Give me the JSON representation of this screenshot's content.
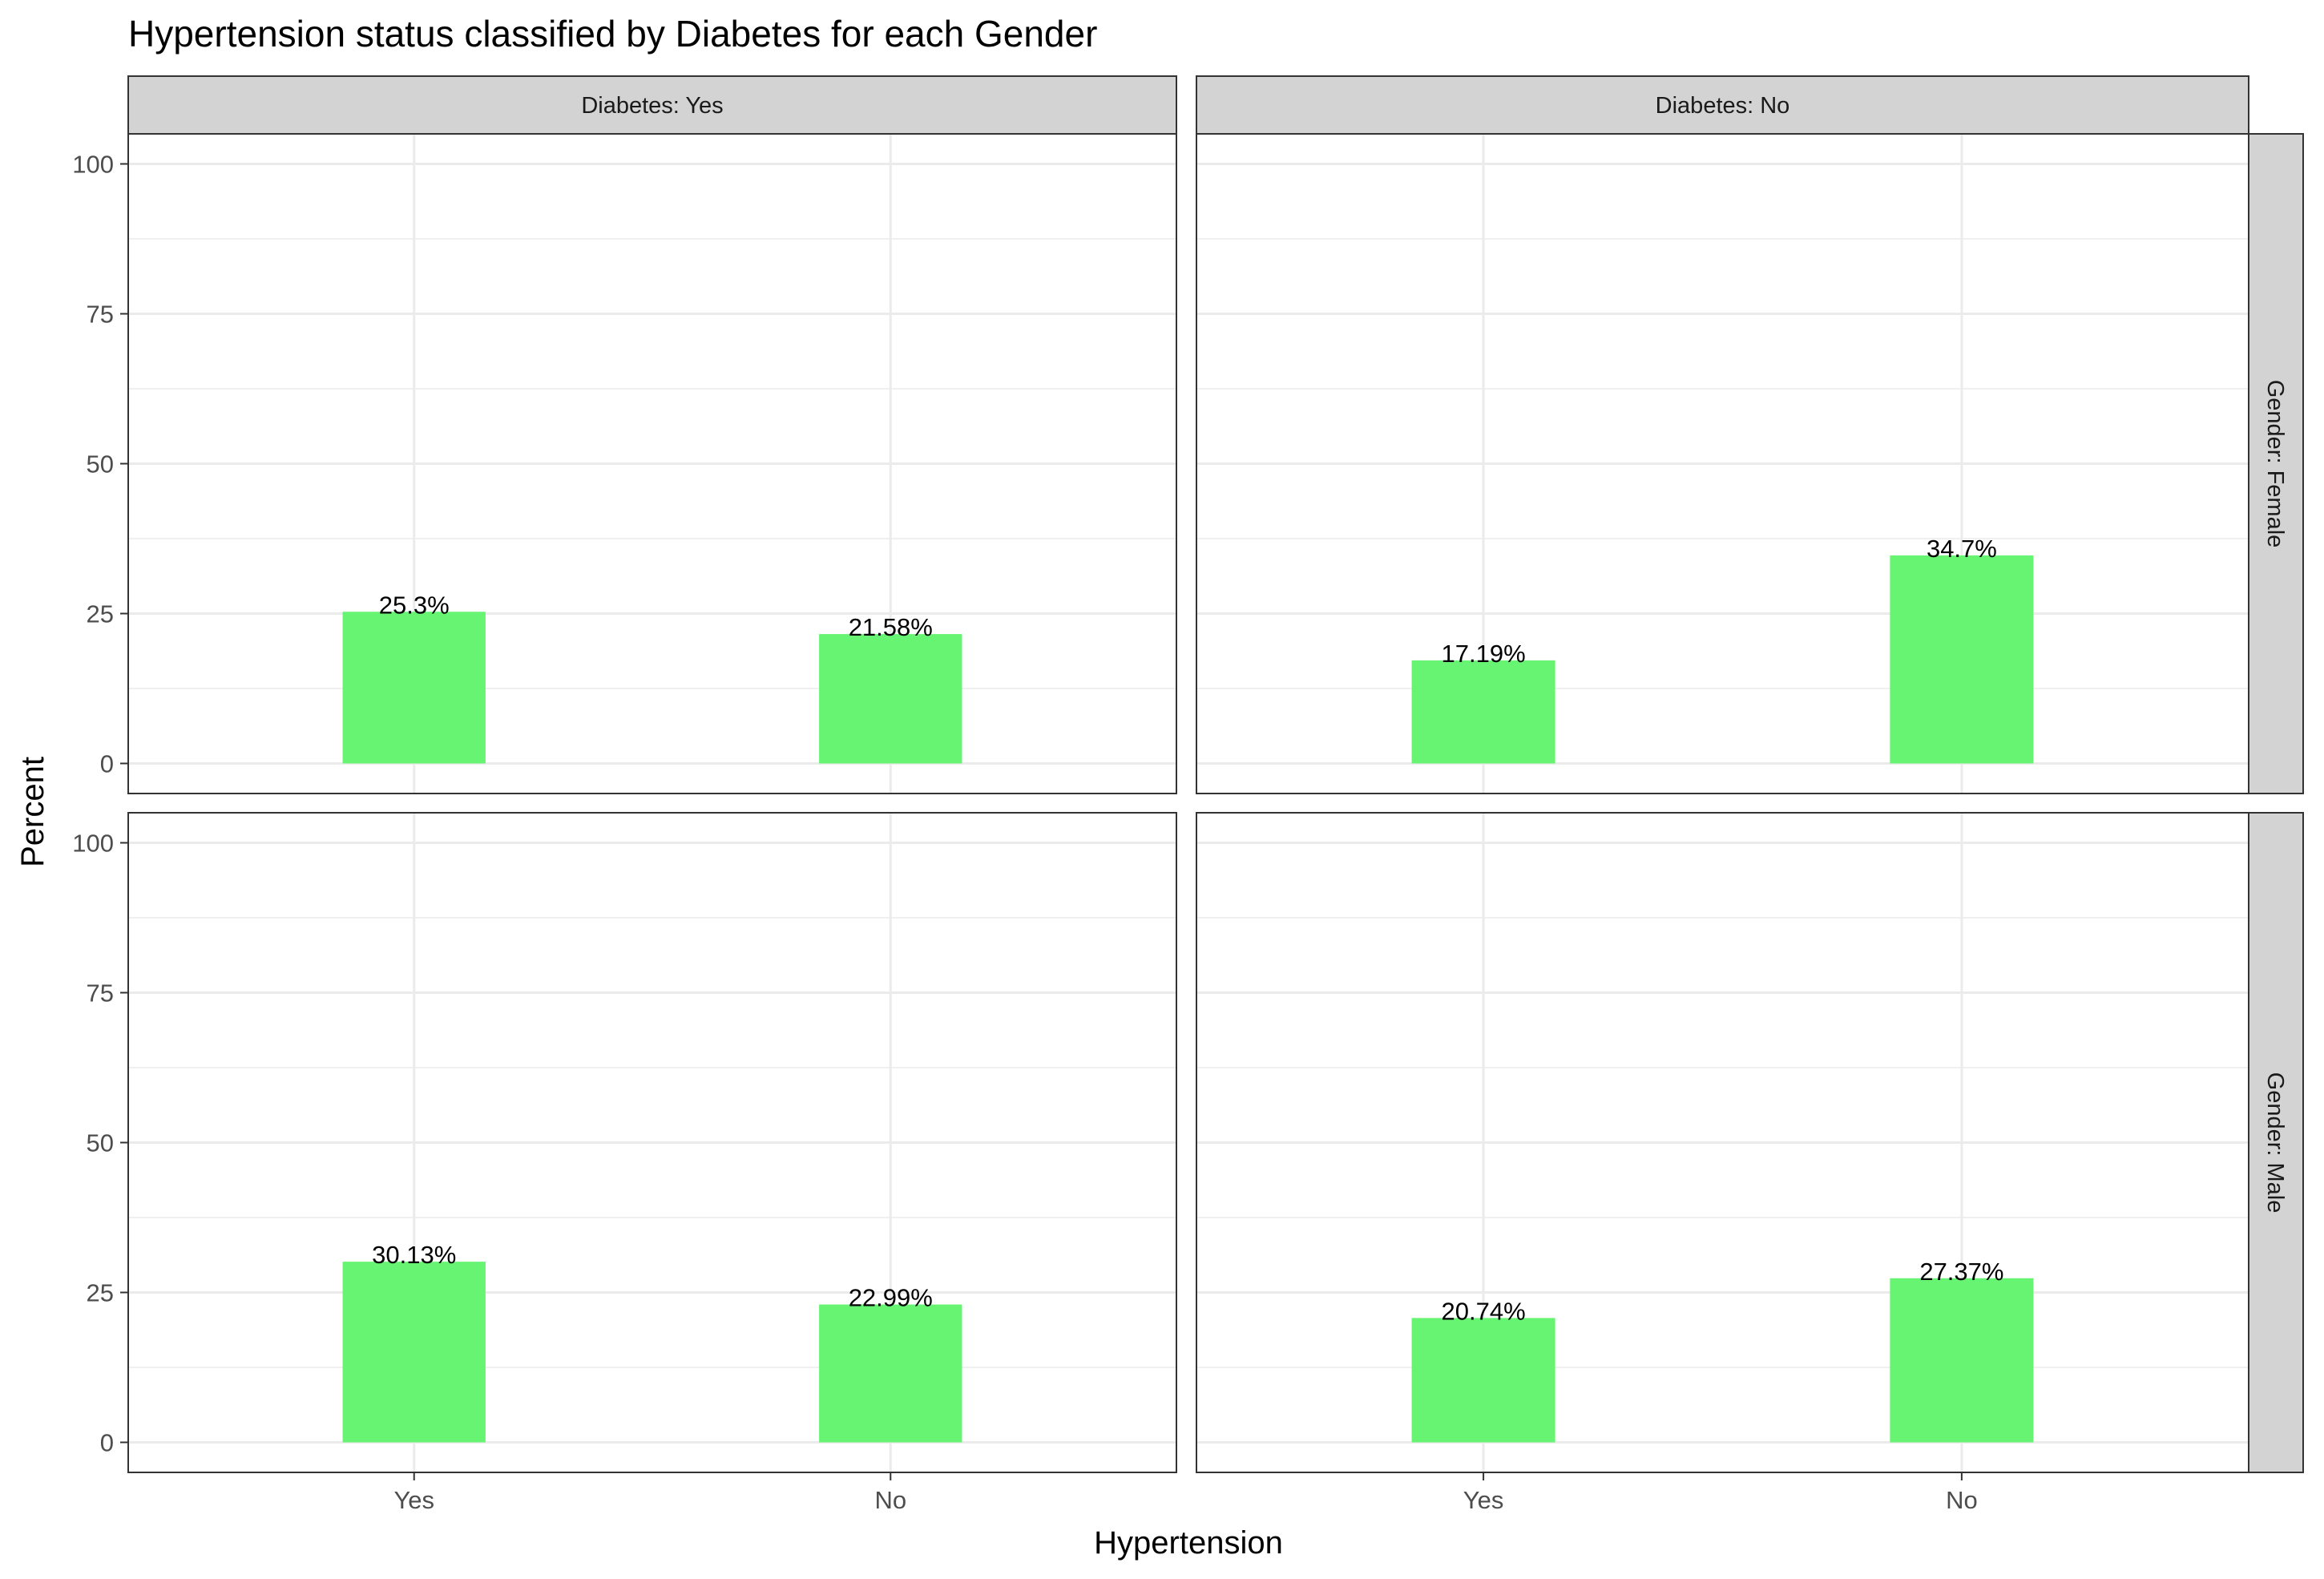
{
  "chart_data": {
    "type": "bar",
    "title": "Hypertension status classified by Diabetes for each Gender",
    "xlabel": "Hypertension",
    "ylabel": "Percent",
    "ylim": [
      0,
      100
    ],
    "y_ticks": [
      "0",
      "25",
      "50",
      "75",
      "100"
    ],
    "categories": [
      "Yes",
      "No"
    ],
    "column_facets": [
      "Diabetes: Yes",
      "Diabetes: No"
    ],
    "row_facets": [
      "Gender: Female",
      "Gender: Male"
    ],
    "bar_color": "#66F472",
    "grid": true,
    "panels": [
      {
        "row": 0,
        "col": 0,
        "values": [
          25.3,
          21.58
        ],
        "labels": [
          "25.3%",
          "21.58%"
        ]
      },
      {
        "row": 0,
        "col": 1,
        "values": [
          17.19,
          34.7
        ],
        "labels": [
          "17.19%",
          "34.7%"
        ]
      },
      {
        "row": 1,
        "col": 0,
        "values": [
          30.13,
          22.99
        ],
        "labels": [
          "30.13%",
          "22.99%"
        ]
      },
      {
        "row": 1,
        "col": 1,
        "values": [
          20.74,
          27.37
        ],
        "labels": [
          "20.74%",
          "27.37%"
        ]
      }
    ]
  }
}
